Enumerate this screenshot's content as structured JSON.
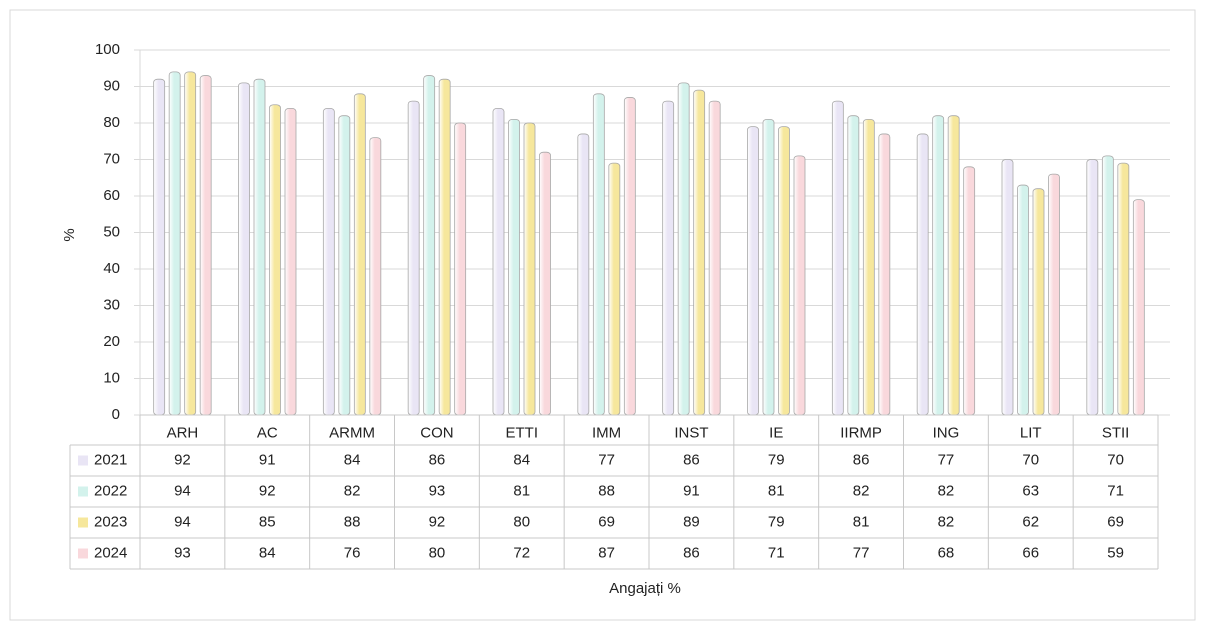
{
  "chart_data": {
    "type": "bar",
    "x_label": "Angajați %",
    "y_label": "%",
    "categories": [
      "ARH",
      "AC",
      "ARMM",
      "CON",
      "ETTI",
      "IMM",
      "INST",
      "IE",
      "IIRMP",
      "ING",
      "LIT",
      "STII"
    ],
    "series": [
      {
        "name": "2021",
        "color": "#e9e5f5",
        "values": [
          92,
          91,
          84,
          86,
          84,
          77,
          86,
          79,
          86,
          77,
          70,
          70
        ]
      },
      {
        "name": "2022",
        "color": "#d3f2ec",
        "values": [
          94,
          92,
          82,
          93,
          81,
          88,
          91,
          81,
          82,
          82,
          63,
          71
        ]
      },
      {
        "name": "2023",
        "color": "#f6e79c",
        "values": [
          94,
          85,
          88,
          92,
          80,
          69,
          89,
          79,
          81,
          82,
          62,
          69
        ]
      },
      {
        "name": "2024",
        "color": "#f9d8dc",
        "values": [
          93,
          84,
          76,
          80,
          72,
          87,
          86,
          71,
          77,
          68,
          66,
          59
        ]
      }
    ],
    "ylim": [
      0,
      100
    ],
    "yticks": [
      0,
      10,
      20,
      30,
      40,
      50,
      60,
      70,
      80,
      90,
      100
    ],
    "grid": true
  }
}
